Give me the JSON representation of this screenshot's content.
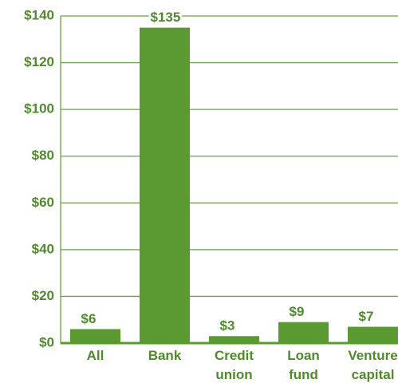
{
  "chart_data": {
    "type": "bar",
    "categories": [
      "All",
      "Bank",
      "Credit union",
      "Loan fund",
      "Venture capital"
    ],
    "values": [
      6,
      135,
      3,
      9,
      7
    ],
    "value_labels": [
      "$6",
      "$135",
      "$3",
      "$9",
      "$7"
    ],
    "color": "#5b9a32",
    "ylim": [
      0,
      140
    ],
    "yticks": [
      {
        "value": 0,
        "label": "$0"
      },
      {
        "value": 20,
        "label": "$20"
      },
      {
        "value": 40,
        "label": "$40"
      },
      {
        "value": 60,
        "label": "$60"
      },
      {
        "value": 80,
        "label": "$80"
      },
      {
        "value": 100,
        "label": "$100"
      },
      {
        "value": 120,
        "label": "$120"
      },
      {
        "value": 140,
        "label": "$140"
      }
    ],
    "grid": true
  }
}
